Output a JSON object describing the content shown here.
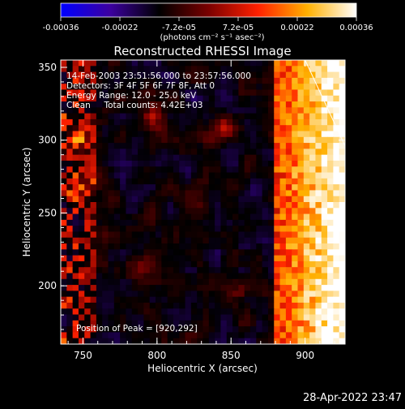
{
  "chart_data": {
    "type": "heatmap",
    "title": "Reconstructed RHESSI Image",
    "xlabel": "Heliocentric X (arcsec)",
    "ylabel": "Heliocentric Y (arcsec)",
    "xlim": [
      735,
      927
    ],
    "ylim": [
      160,
      355
    ],
    "x_ticks": [
      750,
      800,
      850,
      900
    ],
    "y_ticks": [
      200,
      250,
      300,
      350
    ],
    "colorbar": {
      "title": "(photons cm⁻² s⁻¹ asec⁻²)",
      "tick_labels": [
        "-0.00036",
        "-0.00022",
        "-7.2e-05",
        "7.2e-05",
        "0.00022",
        "0.00036"
      ],
      "range": [
        -0.00036,
        0.00036
      ],
      "colors": [
        "#0000ff",
        "#3c00a0",
        "#000000",
        "#7a0000",
        "#ff2000",
        "#ffb000",
        "#ffffff"
      ]
    },
    "annotations": [
      "14-Feb-2003 23:51:56.000 to 23:57:56.000",
      "Detectors: 3F 4F 5F 6F 7F 8F, Att 0",
      "Energy Range: 12.0 - 25.0 keV",
      "Clean     Total counts: 4.42E+03"
    ],
    "peak_label": "Position of Peak = [920,292]",
    "peak": [
      920,
      292
    ],
    "limb_line": [
      [
        900,
        355
      ],
      [
        927,
        296
      ]
    ],
    "pattern": {
      "grid_cols": 48,
      "grid_rows": 48,
      "background_level": -0.00012,
      "bright_edges": [
        {
          "side": "right",
          "x_start": 880,
          "x_end": 927,
          "level": 0.00036
        },
        {
          "side": "left",
          "x_start": 735,
          "x_end": 760,
          "level": 0.00022
        }
      ],
      "blobs": [
        {
          "x": 798,
          "y": 316,
          "level": 0.00015
        },
        {
          "x": 845,
          "y": 307,
          "level": 0.00012
        },
        {
          "x": 748,
          "y": 300,
          "level": 0.00013
        },
        {
          "x": 752,
          "y": 268,
          "level": 0.00014
        },
        {
          "x": 792,
          "y": 212,
          "level": 0.0001
        },
        {
          "x": 852,
          "y": 196,
          "level": 0.00012
        },
        {
          "x": 830,
          "y": 250,
          "level": 6e-05
        }
      ]
    }
  },
  "timestamp": "28-Apr-2022 23:47"
}
